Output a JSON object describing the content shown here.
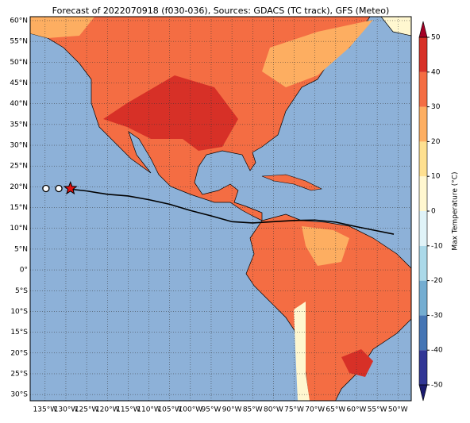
{
  "chart_data": {
    "type": "map",
    "title": "Forecast of 2022070918 (f030-036), Sources: GDACS (TC track), GFS (Meteo)",
    "xlim": [
      -138.6,
      -46.8
    ],
    "ylim": [
      -31.5,
      60.95
    ],
    "xticks": [
      {
        "value": -135,
        "label": "135°W"
      },
      {
        "value": -130,
        "label": "130°W"
      },
      {
        "value": -125,
        "label": "125°W"
      },
      {
        "value": -120,
        "label": "120°W"
      },
      {
        "value": -115,
        "label": "115°W"
      },
      {
        "value": -110,
        "label": "110°W"
      },
      {
        "value": -105,
        "label": "105°W"
      },
      {
        "value": -100,
        "label": "100°W"
      },
      {
        "value": -95,
        "label": "95°W"
      },
      {
        "value": -90,
        "label": "90°W"
      },
      {
        "value": -85,
        "label": "85°W"
      },
      {
        "value": -80,
        "label": "80°W"
      },
      {
        "value": -75,
        "label": "75°W"
      },
      {
        "value": -70,
        "label": "70°W"
      },
      {
        "value": -65,
        "label": "65°W"
      },
      {
        "value": -60,
        "label": "60°W"
      },
      {
        "value": -55,
        "label": "55°W"
      },
      {
        "value": -50,
        "label": "50°W"
      }
    ],
    "yticks": [
      {
        "value": 60,
        "label": "60°N"
      },
      {
        "value": 55,
        "label": "55°N"
      },
      {
        "value": 50,
        "label": "50°N"
      },
      {
        "value": 45,
        "label": "45°N"
      },
      {
        "value": 40,
        "label": "40°N"
      },
      {
        "value": 35,
        "label": "35°N"
      },
      {
        "value": 30,
        "label": "30°N"
      },
      {
        "value": 25,
        "label": "25°N"
      },
      {
        "value": 20,
        "label": "20°N"
      },
      {
        "value": 15,
        "label": "15°N"
      },
      {
        "value": 10,
        "label": "10°N"
      },
      {
        "value": 5,
        "label": "5°N"
      },
      {
        "value": 0,
        "label": "0°"
      },
      {
        "value": -5,
        "label": "5°S"
      },
      {
        "value": -10,
        "label": "10°S"
      },
      {
        "value": -15,
        "label": "15°S"
      },
      {
        "value": -20,
        "label": "20°S"
      },
      {
        "value": -25,
        "label": "25°S"
      },
      {
        "value": -30,
        "label": "30°S"
      }
    ],
    "grid": true,
    "track": {
      "color": "#000000",
      "x": [
        -129.5,
        -125,
        -120,
        -115,
        -110,
        -105,
        -100,
        -95,
        -90,
        -85,
        -80,
        -75,
        -70,
        -65,
        -60,
        -55,
        -51
      ],
      "y": [
        19.5,
        19.0,
        18.2,
        17.8,
        16.9,
        15.8,
        14.3,
        13.0,
        11.6,
        11.3,
        11.6,
        11.9,
        12.0,
        11.5,
        10.4,
        9.4,
        8.6
      ]
    },
    "past_positions": {
      "x": [
        -134.8,
        -131.7
      ],
      "y": [
        19.6,
        19.6
      ]
    },
    "current_position": {
      "x": -128.9,
      "y": 19.6,
      "color": "#e01010"
    },
    "colorbar": {
      "label": "Max Temperature (°C)",
      "lim": [
        -50,
        50
      ],
      "ticks": [
        -50,
        -40,
        -30,
        -20,
        -10,
        0,
        10,
        20,
        30,
        40,
        50
      ],
      "colors": [
        "#313695",
        "#4575b4",
        "#74add1",
        "#abd9e9",
        "#e0f3f8",
        "#fff7d0",
        "#fee090",
        "#fdae61",
        "#f46d43",
        "#d73027"
      ],
      "under_color": "#1a1a6e",
      "over_color": "#a50026"
    }
  }
}
